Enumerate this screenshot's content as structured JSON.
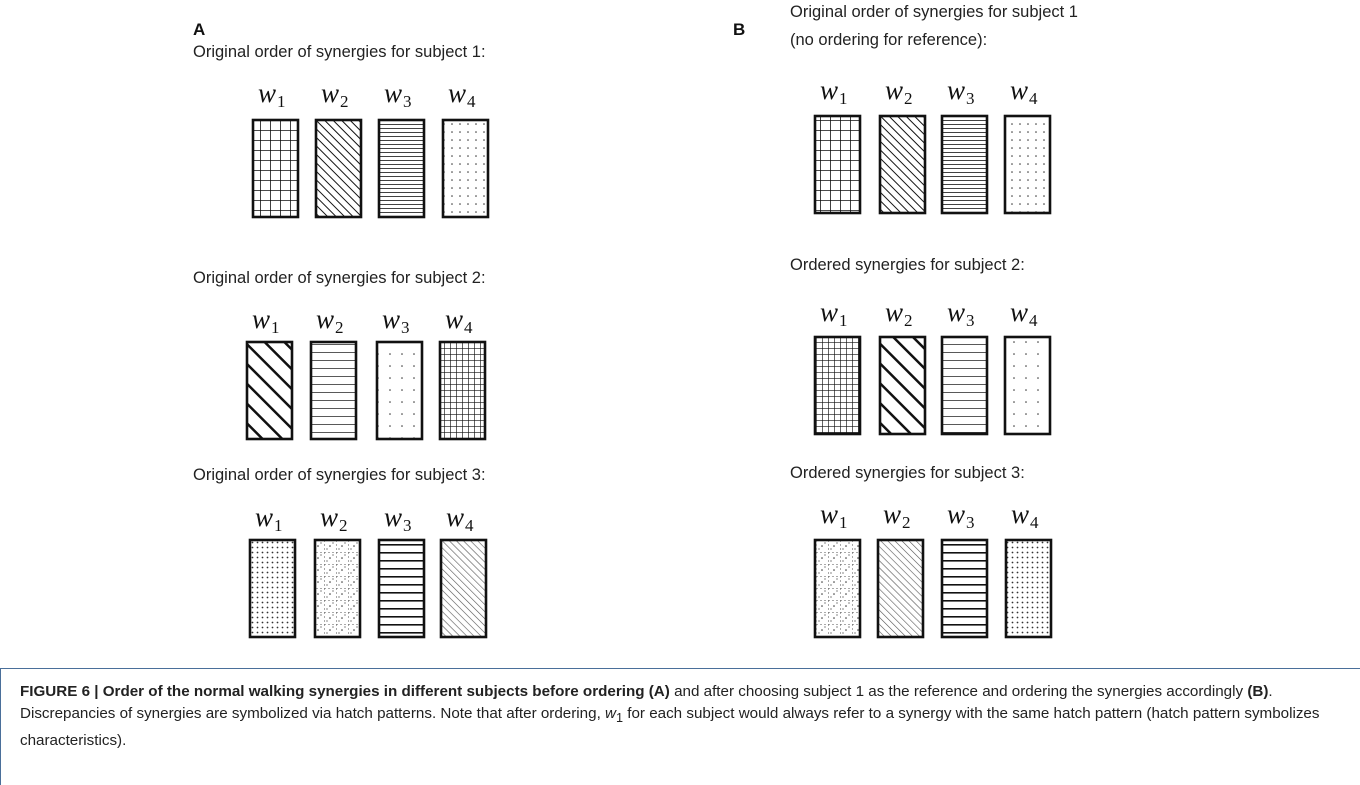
{
  "panels": [
    {
      "label": "A",
      "rows": [
        {
          "heading": [
            "Original order of synergies for subject 1:"
          ],
          "synergies": [
            {
              "base": "w",
              "sub": "1"
            },
            {
              "base": "w",
              "sub": "2"
            },
            {
              "base": "w",
              "sub": "3"
            },
            {
              "base": "w",
              "sub": "4"
            }
          ]
        },
        {
          "heading": [
            "Original order of synergies for subject 2:"
          ],
          "synergies": [
            {
              "base": "w",
              "sub": "1"
            },
            {
              "base": "w",
              "sub": "2"
            },
            {
              "base": "w",
              "sub": "3"
            },
            {
              "base": "w",
              "sub": "4"
            }
          ]
        },
        {
          "heading": [
            "Original order of synergies for subject 3:"
          ],
          "synergies": [
            {
              "base": "w",
              "sub": "1"
            },
            {
              "base": "w",
              "sub": "2"
            },
            {
              "base": "w",
              "sub": "3"
            },
            {
              "base": "w",
              "sub": "4"
            }
          ]
        }
      ]
    },
    {
      "label": "B",
      "rows": [
        {
          "heading": [
            "Original order of synergies for subject 1",
            "(no ordering for reference):"
          ],
          "synergies": [
            {
              "base": "w",
              "sub": "1"
            },
            {
              "base": "w",
              "sub": "2"
            },
            {
              "base": "w",
              "sub": "3"
            },
            {
              "base": "w",
              "sub": "4"
            }
          ]
        },
        {
          "heading": [
            "Ordered synergies for subject 2:"
          ],
          "synergies": [
            {
              "base": "w",
              "sub": "1"
            },
            {
              "base": "w",
              "sub": "2"
            },
            {
              "base": "w",
              "sub": "3"
            },
            {
              "base": "w",
              "sub": "4"
            }
          ]
        },
        {
          "heading": [
            "Ordered synergies for subject 3:"
          ],
          "synergies": [
            {
              "base": "w",
              "sub": "1"
            },
            {
              "base": "w",
              "sub": "2"
            },
            {
              "base": "w",
              "sub": "3"
            },
            {
              "base": "w",
              "sub": "4"
            }
          ]
        }
      ]
    }
  ],
  "caption": [
    "FIGURE 6 | Order of the normal walking synergies in different subjects before ordering (A)",
    " and after choosing subject 1 as the reference and ordering the synergies accordingly ",
    "(B)",
    ". Discrepancies of synergies are symbolized via hatch patterns. Note that after ordering, ",
    "w",
    "1",
    " for each subject would always refer to a synergy with the same hatch pattern (hatch pattern symbolizes characteristics)."
  ]
}
